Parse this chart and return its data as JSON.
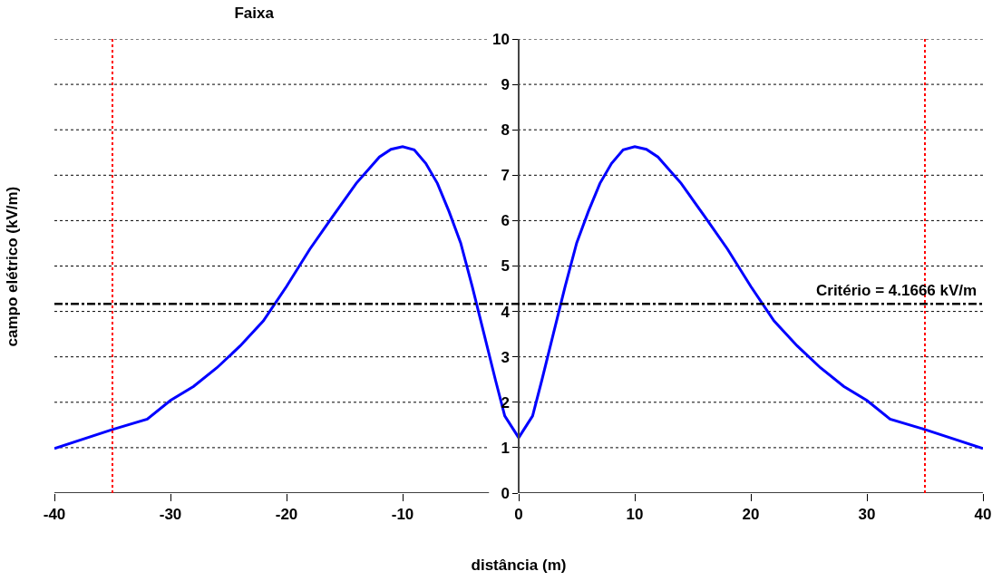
{
  "chart_data": {
    "type": "line",
    "title": "Faixa",
    "xlabel": "distância (m)",
    "ylabel": "campo elétrico (kV/m)",
    "x": [
      -40,
      -35,
      -32,
      -30,
      -28,
      -26,
      -24,
      -22,
      -20,
      -18,
      -16,
      -14,
      -12,
      -11,
      -10,
      -9,
      -8,
      -7,
      -6,
      -5,
      -4,
      -3,
      -2,
      -1.2,
      0,
      1.2,
      2,
      3,
      4,
      5,
      6,
      7,
      8,
      9,
      10,
      11,
      12,
      14,
      16,
      18,
      20,
      22,
      24,
      26,
      28,
      30,
      32,
      35,
      40
    ],
    "series": [
      {
        "color": "#0000ff",
        "values": [
          0.98,
          1.4,
          1.63,
          2.04,
          2.35,
          2.76,
          3.24,
          3.79,
          4.55,
          5.37,
          6.1,
          6.82,
          7.4,
          7.57,
          7.63,
          7.56,
          7.26,
          6.82,
          6.2,
          5.51,
          4.55,
          3.52,
          2.49,
          1.7,
          1.22,
          1.7,
          2.49,
          3.52,
          4.55,
          5.51,
          6.2,
          6.82,
          7.26,
          7.56,
          7.63,
          7.57,
          7.4,
          6.82,
          6.1,
          5.37,
          4.55,
          3.79,
          3.24,
          2.76,
          2.35,
          2.04,
          1.63,
          1.4,
          0.98
        ]
      }
    ],
    "xlim": [
      -40,
      40
    ],
    "xticks": [
      -40,
      -30,
      -20,
      -10,
      0,
      10,
      20,
      30,
      40
    ],
    "ylim": [
      0,
      10
    ],
    "yticks": [
      0,
      1,
      2,
      3,
      4,
      5,
      6,
      7,
      8,
      9,
      10
    ],
    "grid": "y",
    "legend": false,
    "marker": "none",
    "line_style": "solid",
    "ref_lines": [
      {
        "axis": "y",
        "value": 4.1666,
        "label": "Critério = 4.1666 kV/m",
        "color": "#000000",
        "line_style": "dashdot"
      },
      {
        "axis": "x",
        "value": -35,
        "color": "#ff0000",
        "line_style": "dotted"
      },
      {
        "axis": "x",
        "value": 35,
        "color": "#ff0000",
        "line_style": "dotted"
      }
    ]
  }
}
